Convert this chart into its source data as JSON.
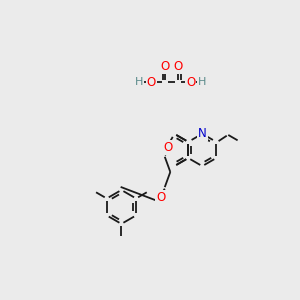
{
  "background_color": "#ebebeb",
  "atom_colors": {
    "O": "#ff0000",
    "N": "#0000cc",
    "C": "#1a1a1a",
    "H": "#5a8a8a"
  },
  "bond_color": "#1a1a1a",
  "bond_lw": 1.3
}
